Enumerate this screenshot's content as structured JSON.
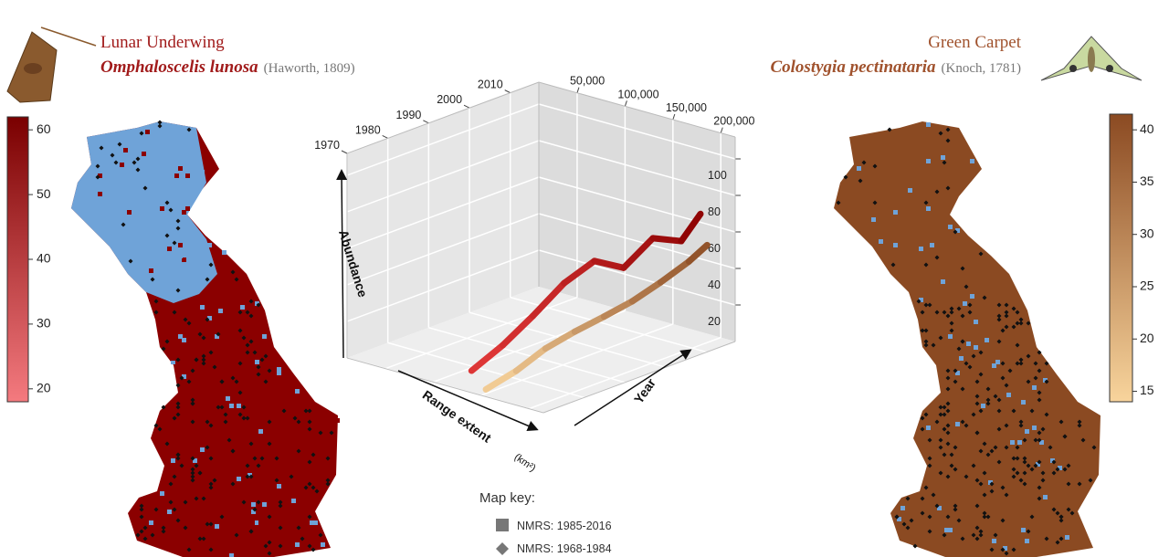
{
  "left_species": {
    "common_name": "Lunar Underwing",
    "scientific_name": "Omphaloscelis lunosa",
    "authority": "(Haworth, 1809)",
    "colorbar": {
      "lim": [
        18,
        62
      ],
      "ticks": [
        20,
        30,
        40,
        50,
        60
      ],
      "colors": [
        "#f47a7f",
        "#7a0000"
      ]
    }
  },
  "right_species": {
    "common_name": "Green Carpet",
    "scientific_name": "Colostygia pectinataria",
    "authority": "(Knoch, 1781)",
    "colorbar": {
      "lim": [
        14,
        41.5
      ],
      "ticks": [
        15,
        20,
        25,
        30,
        35,
        40
      ],
      "colors": [
        "#f8d49c",
        "#8b4a22"
      ]
    }
  },
  "chart_3d": {
    "type": "line3d",
    "x_label": "Year",
    "y_label": "Range extent",
    "y_unit": "(km²)",
    "z_label": "Abundance",
    "xlim": [
      1970,
      2017
    ],
    "xticks": [
      1970,
      1980,
      1990,
      2000,
      2010
    ],
    "ylim": [
      10000,
      215000
    ],
    "yticks": [
      {
        "value": 50000,
        "label": "50,000"
      },
      {
        "value": 100000,
        "label": "100,000"
      },
      {
        "value": 150000,
        "label": "150,000"
      },
      {
        "value": 200000,
        "label": "200,000"
      }
    ],
    "zlim": [
      0,
      112
    ],
    "zticks": [
      20,
      40,
      60,
      80,
      100
    ],
    "series": [
      {
        "colors": [
          "#e23a3a",
          "#8b0000"
        ],
        "x": [
          1970,
          1976,
          1982,
          1988,
          1994,
          2000,
          2006,
          2012,
          2016
        ],
        "y": [
          140000,
          147000,
          153000,
          160000,
          166000,
          171000,
          176000,
          180000,
          183000
        ],
        "z": [
          12,
          22,
          34,
          48,
          56,
          48,
          60,
          54,
          66
        ]
      },
      {
        "colors": [
          "#f8d49c",
          "#8b4a22"
        ],
        "x": [
          1970,
          1976,
          1982,
          1988,
          1994,
          2000,
          2006,
          2012,
          2016
        ],
        "y": [
          155000,
          161000,
          166000,
          171000,
          176000,
          180000,
          184000,
          188000,
          190000
        ],
        "z": [
          4,
          10,
          18,
          23,
          27,
          31,
          37,
          44,
          50
        ]
      }
    ]
  },
  "map_key": {
    "title": "Map key:",
    "items": [
      "NMRS: 1985-2016",
      "NMRS: 1968-1984"
    ]
  }
}
